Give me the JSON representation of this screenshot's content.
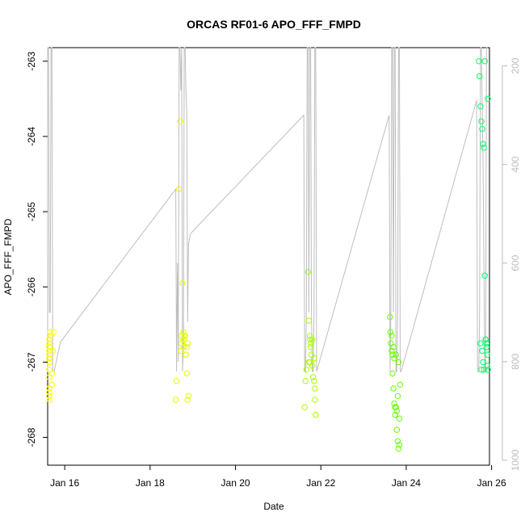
{
  "chart_data": {
    "type": "scatter",
    "title": "ORCAS RF01-6 APO_FFF_FMPD",
    "xlabel": "Date",
    "ylabel": "APO_FFF_FMPD",
    "xlim": [
      15.6,
      25.95
    ],
    "ylim": [
      -268.37,
      -262.82
    ],
    "y2lim": [
      1010,
      163
    ],
    "x_ticks": [
      16,
      18,
      20,
      22,
      24,
      26
    ],
    "x_tick_labels": [
      "Jan 16",
      "Jan 18",
      "Jan 20",
      "Jan 22",
      "Jan 24",
      "Jan 26"
    ],
    "y_ticks": [
      -263,
      -264,
      -265,
      -266,
      -267,
      -268
    ],
    "y_tick_labels": [
      "-263",
      "-264",
      "-265",
      "-266",
      "-267",
      "-268"
    ],
    "y2_ticks": [
      200,
      400,
      600,
      800,
      1000
    ],
    "y2_tick_labels": [
      "200",
      "400",
      "600",
      "800",
      "1000"
    ],
    "grid": false,
    "legend": "none",
    "colors": {
      "RF01": "#ffff00",
      "RF02": "#e5ff00",
      "RF03": "#a6ff00",
      "RF04": "#66ff00",
      "RF06": "#00ff66",
      "pressure_line": "#bebebe"
    },
    "series": [
      {
        "flight": "RF01",
        "x": [
          15.35,
          15.38,
          15.4,
          15.42,
          15.45,
          15.47,
          15.5,
          15.52,
          15.55,
          15.57,
          15.6,
          15.62,
          15.64,
          15.66,
          15.68,
          15.7,
          15.72,
          15.74,
          15.5,
          15.55,
          15.6,
          15.65,
          15.7,
          15.6
        ],
        "y": [
          -266.8,
          -267.35,
          -266.9,
          -266.95,
          -266.85,
          -267.4,
          -266.8,
          -267.45,
          -266.95,
          -267.2,
          -266.75,
          -267.1,
          -267.0,
          -266.6,
          -266.65,
          -267.3,
          -266.85,
          -266.6,
          -267.45,
          -267.45,
          -267.35,
          -267.5,
          -267.15,
          -266.7
        ]
      },
      {
        "flight": "RF02",
        "x": [
          18.6,
          18.62,
          18.68,
          18.7,
          18.72,
          18.74,
          18.76,
          18.78,
          18.8,
          18.82,
          18.84,
          18.86,
          18.88,
          18.74,
          18.76,
          18.78,
          18.8,
          18.84,
          18.86,
          18.88,
          18.9
        ],
        "y": [
          -267.5,
          -267.25,
          -264.7,
          -263.8,
          -266.85,
          -266.65,
          -265.95,
          -266.6,
          -266.7,
          -266.65,
          -266.9,
          -266.8,
          -266.75,
          -266.75,
          -266.7,
          -266.8,
          -266.65,
          -266.9,
          -267.15,
          -267.5,
          -267.45
        ]
      },
      {
        "flight": "RF03",
        "x": [
          21.62,
          21.64,
          21.66,
          21.7,
          21.72,
          21.74,
          21.75,
          21.76,
          21.78,
          21.8,
          21.82,
          21.84,
          21.86,
          21.88,
          21.76,
          21.8,
          21.84,
          21.86,
          21.74,
          21.72
        ],
        "y": [
          -267.6,
          -267.25,
          -267.1,
          -265.8,
          -266.45,
          -266.65,
          -266.7,
          -266.8,
          -266.9,
          -267.05,
          -267.2,
          -267.25,
          -267.5,
          -267.7,
          -266.75,
          -266.7,
          -266.95,
          -267.35,
          -267.0,
          -267.0
        ]
      },
      {
        "flight": "RF04",
        "x": [
          23.62,
          23.63,
          23.64,
          23.66,
          23.68,
          23.7,
          23.72,
          23.74,
          23.76,
          23.78,
          23.8,
          23.82,
          23.84,
          23.86,
          23.68,
          23.72,
          23.76,
          23.8,
          23.84,
          23.74,
          23.78,
          23.82,
          23.7,
          23.66
        ],
        "y": [
          -266.4,
          -266.6,
          -266.75,
          -266.85,
          -267.15,
          -267.35,
          -267.55,
          -267.7,
          -267.6,
          -267.9,
          -268.05,
          -268.15,
          -268.1,
          -267.3,
          -266.9,
          -266.95,
          -266.9,
          -267.45,
          -267.75,
          -267.6,
          -267.65,
          -267.0,
          -266.8,
          -266.65
        ]
      },
      {
        "flight": "RF06",
        "x": [
          25.7,
          25.72,
          25.74,
          25.76,
          25.78,
          25.8,
          25.82,
          25.84,
          25.86,
          25.88,
          25.9,
          25.92,
          25.74,
          25.76,
          25.78,
          25.8,
          25.82,
          25.84,
          25.86,
          25.88,
          25.9,
          25.92
        ],
        "y": [
          -263.0,
          -263.2,
          -263.6,
          -263.8,
          -263.9,
          -264.1,
          -264.15,
          -265.85,
          -266.7,
          -266.8,
          -266.9,
          -263.5,
          -266.75,
          -267.1,
          -266.85,
          -267.0,
          -267.1,
          -263.0,
          -266.7,
          -266.75,
          -267.05,
          -267.1
        ]
      }
    ],
    "pressure_trace": {
      "x": [
        15.35,
        15.37,
        15.4,
        15.45,
        15.5,
        15.52,
        15.55,
        15.57,
        15.6,
        15.62,
        15.64,
        15.66,
        15.68,
        15.7,
        15.72,
        15.75,
        15.8,
        15.85,
        15.9,
        18.6,
        18.62,
        18.64,
        18.66,
        18.68,
        18.7,
        18.72,
        18.74,
        18.76,
        18.78,
        18.8,
        18.82,
        18.84,
        18.86,
        18.88,
        18.9,
        18.95,
        21.6,
        21.62,
        21.64,
        21.66,
        21.68,
        21.7,
        21.72,
        21.74,
        21.76,
        21.78,
        21.8,
        21.82,
        21.84,
        21.86,
        21.88,
        21.9,
        23.6,
        23.62,
        23.64,
        23.66,
        23.68,
        23.7,
        23.72,
        23.74,
        23.76,
        23.78,
        23.8,
        23.82,
        23.84,
        23.86,
        23.88,
        25.65,
        25.67,
        25.7,
        25.72,
        25.74,
        25.76,
        25.8,
        25.84,
        25.86,
        25.88,
        25.9
      ],
      "y": [
        300,
        820,
        820,
        700,
        163,
        163,
        700,
        700,
        163,
        163,
        700,
        700,
        163,
        163,
        820,
        820,
        800,
        780,
        760,
        450,
        820,
        600,
        800,
        163,
        163,
        250,
        163,
        820,
        760,
        163,
        163,
        250,
        300,
        720,
        560,
        540,
        300,
        820,
        820,
        700,
        163,
        163,
        700,
        163,
        163,
        700,
        820,
        820,
        700,
        163,
        163,
        820,
        300,
        820,
        700,
        163,
        163,
        700,
        163,
        163,
        820,
        820,
        700,
        163,
        163,
        820,
        820,
        270,
        820,
        820,
        700,
        163,
        163,
        400,
        820,
        820,
        163,
        163
      ]
    }
  }
}
